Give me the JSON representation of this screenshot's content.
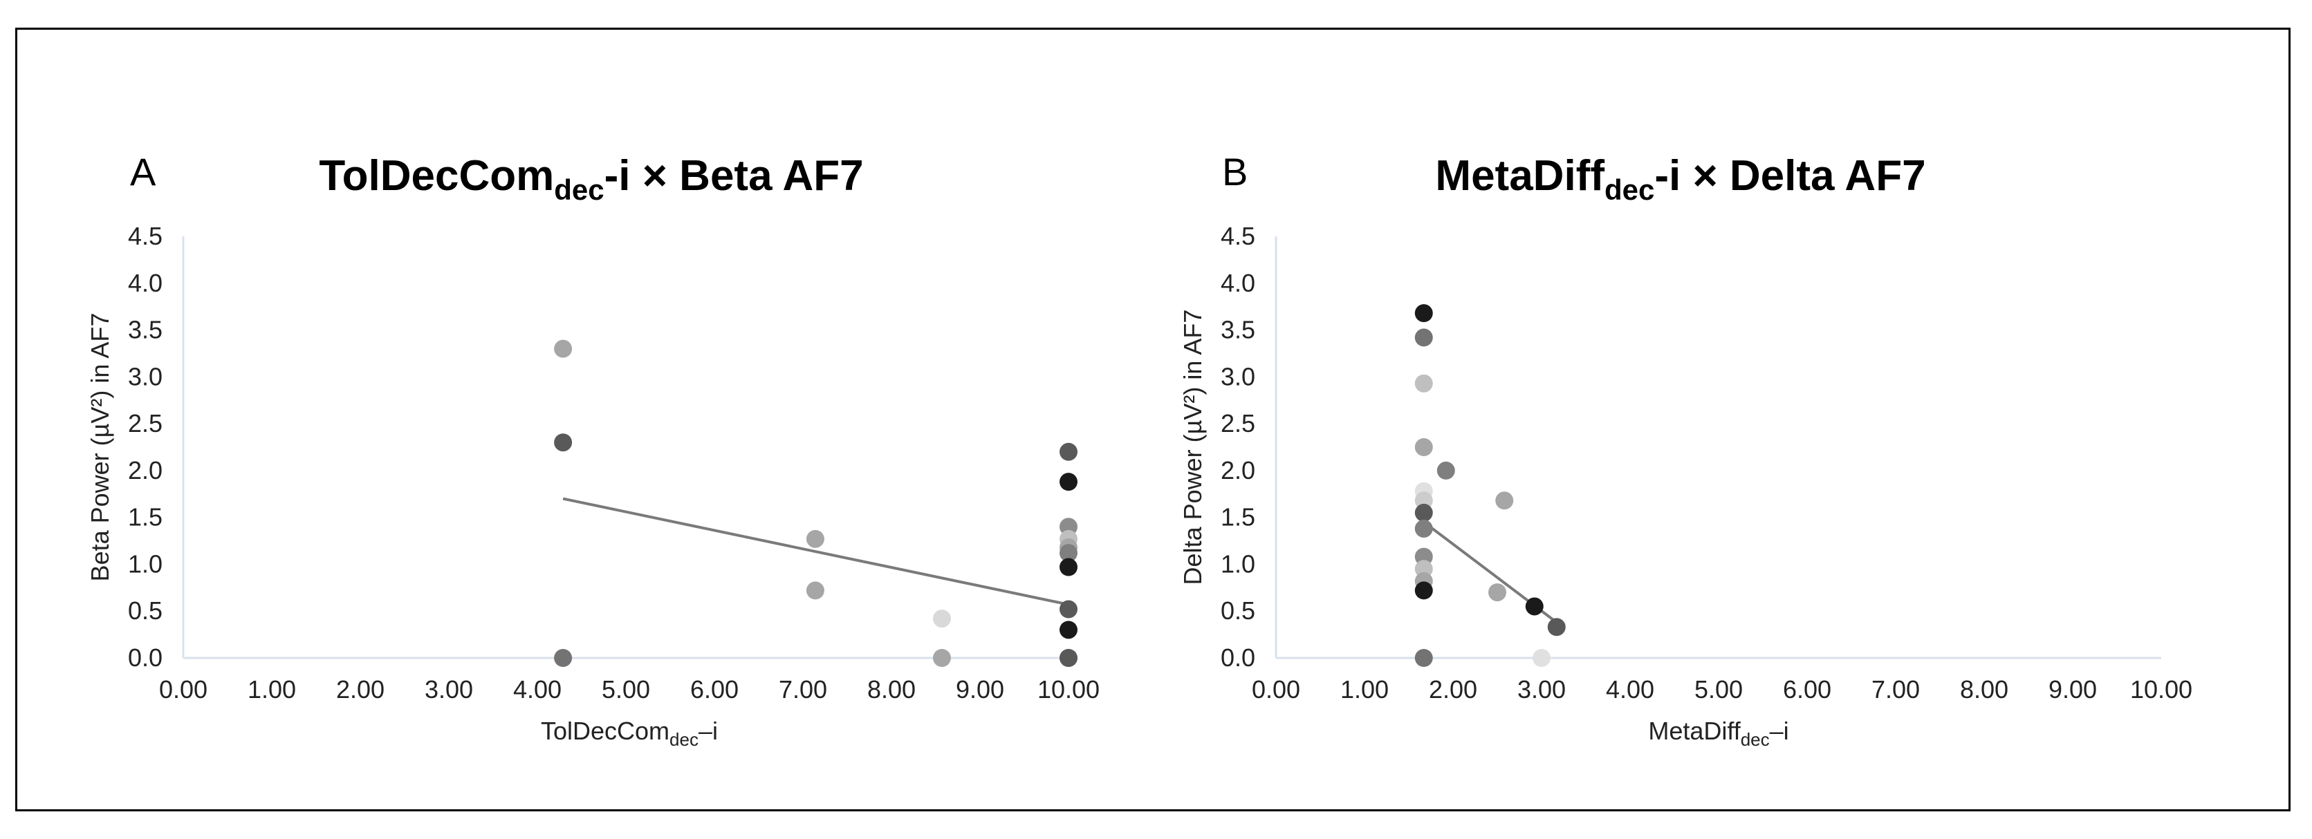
{
  "chart_data": [
    {
      "type": "scatter",
      "panel_letter": "A",
      "title": {
        "main": "TolDecCom",
        "sub": "dec",
        "rest": "-i × Beta AF7"
      },
      "xlabel": {
        "main": "TolDecCom",
        "sub": "dec",
        "rest": "–i"
      },
      "ylabel": "Beta Power (µV²) in AF7",
      "xlim": [
        0,
        10
      ],
      "ylim": [
        0,
        4.5
      ],
      "xticks": [
        "0.00",
        "1.00",
        "2.00",
        "3.00",
        "4.00",
        "5.00",
        "6.00",
        "7.00",
        "8.00",
        "9.00",
        "10.00"
      ],
      "yticks": [
        "0.0",
        "0.5",
        "1.0",
        "1.5",
        "2.0",
        "2.5",
        "3.0",
        "3.5",
        "4.0",
        "4.5"
      ],
      "grid": false,
      "points": [
        {
          "x": 4.29,
          "y": 3.3,
          "color": "#a6a6a6"
        },
        {
          "x": 4.29,
          "y": 2.3,
          "color": "#595959"
        },
        {
          "x": 4.29,
          "y": 0.0,
          "color": "#737373"
        },
        {
          "x": 7.14,
          "y": 1.27,
          "color": "#a6a6a6"
        },
        {
          "x": 7.14,
          "y": 0.72,
          "color": "#a6a6a6"
        },
        {
          "x": 8.57,
          "y": 0.42,
          "color": "#d9d9d9"
        },
        {
          "x": 8.57,
          "y": 0.0,
          "color": "#a6a6a6"
        },
        {
          "x": 10.0,
          "y": 2.2,
          "color": "#595959"
        },
        {
          "x": 10.0,
          "y": 1.88,
          "color": "#1a1a1a"
        },
        {
          "x": 10.0,
          "y": 1.4,
          "color": "#8c8c8c"
        },
        {
          "x": 10.0,
          "y": 1.27,
          "color": "#bfbfbf"
        },
        {
          "x": 10.0,
          "y": 1.18,
          "color": "#a6a6a6"
        },
        {
          "x": 10.0,
          "y": 1.12,
          "color": "#7f7f7f"
        },
        {
          "x": 10.0,
          "y": 0.97,
          "color": "#1a1a1a"
        },
        {
          "x": 10.0,
          "y": 0.52,
          "color": "#595959"
        },
        {
          "x": 10.0,
          "y": 0.3,
          "color": "#1a1a1a"
        },
        {
          "x": 10.0,
          "y": 0.0,
          "color": "#737373"
        },
        {
          "x": 10.0,
          "y": 0.0,
          "color": "#595959"
        }
      ],
      "trendline": {
        "x": [
          4.29,
          10.0
        ],
        "y": [
          1.7,
          0.57
        ]
      }
    },
    {
      "type": "scatter",
      "panel_letter": "B",
      "title": {
        "main": "MetaDiff",
        "sub": "dec",
        "rest": "-i × Delta AF7"
      },
      "xlabel": {
        "main": "MetaDiff",
        "sub": "dec",
        "rest": "–i"
      },
      "ylabel": "Delta Power (µV²) in AF7",
      "xlim": [
        0,
        10
      ],
      "ylim": [
        0,
        4.5
      ],
      "xticks": [
        "0.00",
        "1.00",
        "2.00",
        "3.00",
        "4.00",
        "5.00",
        "6.00",
        "7.00",
        "8.00",
        "9.00",
        "10.00"
      ],
      "yticks": [
        "0.0",
        "0.5",
        "1.0",
        "1.5",
        "2.0",
        "2.5",
        "3.0",
        "3.5",
        "4.0",
        "4.5"
      ],
      "grid": false,
      "points": [
        {
          "x": 1.67,
          "y": 3.68,
          "color": "#1a1a1a"
        },
        {
          "x": 1.67,
          "y": 3.42,
          "color": "#737373"
        },
        {
          "x": 1.67,
          "y": 2.93,
          "color": "#bfbfbf"
        },
        {
          "x": 1.67,
          "y": 2.25,
          "color": "#a6a6a6"
        },
        {
          "x": 1.67,
          "y": 1.78,
          "color": "#e0e0e0"
        },
        {
          "x": 1.67,
          "y": 1.68,
          "color": "#cccccc"
        },
        {
          "x": 1.67,
          "y": 1.55,
          "color": "#595959"
        },
        {
          "x": 1.67,
          "y": 1.38,
          "color": "#7f7f7f"
        },
        {
          "x": 1.67,
          "y": 1.08,
          "color": "#8c8c8c"
        },
        {
          "x": 1.67,
          "y": 0.95,
          "color": "#bfbfbf"
        },
        {
          "x": 1.67,
          "y": 0.82,
          "color": "#a6a6a6"
        },
        {
          "x": 1.67,
          "y": 0.72,
          "color": "#1a1a1a"
        },
        {
          "x": 1.67,
          "y": 0.0,
          "color": "#737373"
        },
        {
          "x": 1.92,
          "y": 2.0,
          "color": "#7f7f7f"
        },
        {
          "x": 2.5,
          "y": 0.7,
          "color": "#a6a6a6"
        },
        {
          "x": 2.58,
          "y": 1.68,
          "color": "#a6a6a6"
        },
        {
          "x": 2.92,
          "y": 0.55,
          "color": "#1a1a1a"
        },
        {
          "x": 3.0,
          "y": 0.0,
          "color": "#e0e0e0"
        },
        {
          "x": 3.17,
          "y": 0.33,
          "color": "#595959"
        }
      ],
      "trendline": {
        "x": [
          1.67,
          3.17
        ],
        "y": [
          1.45,
          0.38
        ]
      }
    }
  ]
}
